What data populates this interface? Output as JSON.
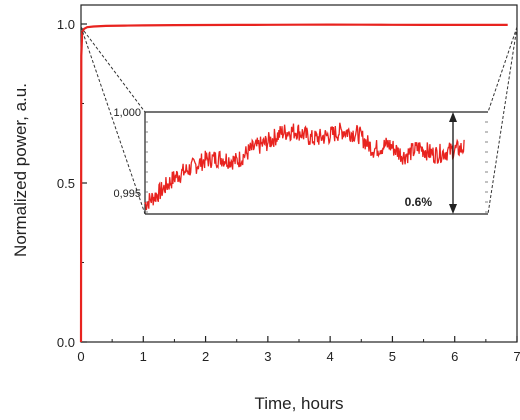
{
  "chart_data": {
    "type": "line",
    "xlabel": "Time, hours",
    "ylabel": "Normalized power, a.u.",
    "xlim": [
      0,
      7
    ],
    "ylim": [
      0,
      1
    ],
    "x_ticks": [
      "0",
      "1",
      "2",
      "3",
      "4",
      "5",
      "6",
      "7"
    ],
    "y_ticks": [
      "0.0",
      "0.5",
      "1.0"
    ],
    "grid": false,
    "series": [
      {
        "color": "#e8231f",
        "x": [
          0,
          0.005,
          0.02,
          0.05,
          0.1,
          0.2,
          0.4,
          0.7,
          1.0,
          1.5,
          2.0,
          2.5,
          3.0,
          3.5,
          4.0,
          4.5,
          5.0,
          5.5,
          6.0,
          6.5,
          6.85
        ],
        "y": [
          0.0,
          0.9,
          0.975,
          0.985,
          0.99,
          0.992,
          0.994,
          0.995,
          0.9955,
          0.9965,
          0.997,
          0.9972,
          0.9975,
          0.9978,
          0.998,
          0.9978,
          0.9975,
          0.9972,
          0.9973,
          0.9973,
          0.9973
        ]
      }
    ],
    "inset": {
      "type": "line",
      "y_ticks": [
        "1,000",
        "0,995"
      ],
      "ylim": [
        0.994,
        1.0
      ],
      "xlim": [
        1.0,
        6.5
      ],
      "annotation": "0.6%",
      "series": [
        {
          "color": "#e8231f",
          "x": [
            1.0,
            1.25,
            1.5,
            1.75,
            2.0,
            2.25,
            2.5,
            2.75,
            3.0,
            3.25,
            3.5,
            3.75,
            4.0,
            4.25,
            4.5,
            4.75,
            5.0,
            5.25,
            5.5,
            5.75,
            6.0,
            6.25
          ],
          "y": [
            0.9946,
            0.9953,
            0.9962,
            0.9967,
            0.9972,
            0.9973,
            0.9971,
            0.9978,
            0.9982,
            0.9988,
            0.9989,
            0.9984,
            0.9986,
            0.9989,
            0.9987,
            0.9978,
            0.9981,
            0.9974,
            0.9979,
            0.9975,
            0.9977,
            0.9979
          ]
        }
      ]
    }
  }
}
